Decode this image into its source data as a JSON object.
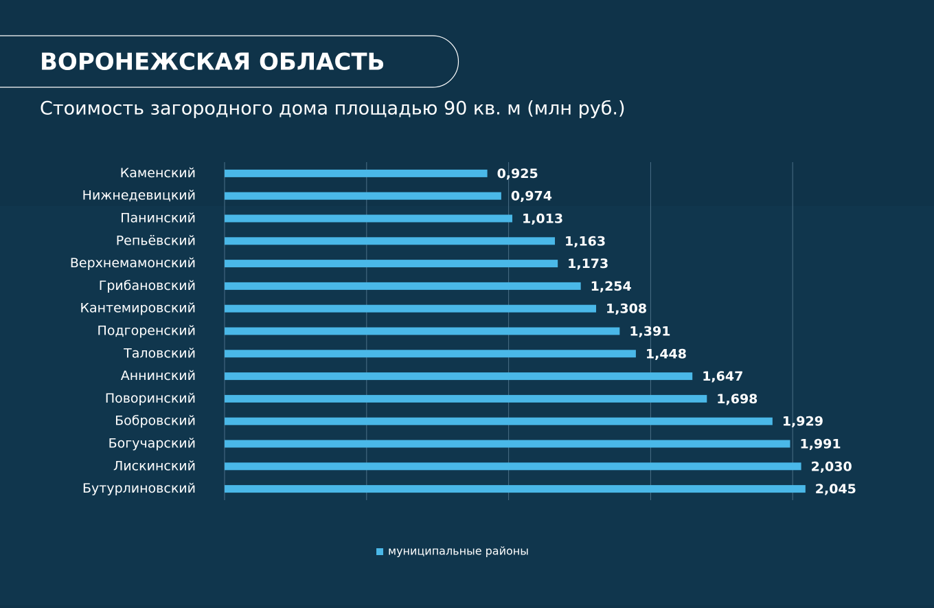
{
  "chart_data": {
    "type": "bar",
    "orientation": "horizontal",
    "title": "ВОРОНЕЖСКАЯ ОБЛАСТЬ",
    "subtitle": "Стоимость загородного дома площадью 90 кв. м (млн руб.)",
    "categories": [
      "Каменский",
      "Нижнедевицкий",
      "Панинский",
      "Репьёвский",
      "Верхнемамонский",
      "Грибановский",
      "Кантемировский",
      "Подгоренский",
      "Таловский",
      "Аннинский",
      "Поворинский",
      "Бобровский",
      "Богучарский",
      "Лискинский",
      "Бутурлиновский"
    ],
    "series": [
      {
        "name": "муниципальные районы",
        "color": "#4ab8e8",
        "values": [
          0.925,
          0.974,
          1.013,
          1.163,
          1.173,
          1.254,
          1.308,
          1.391,
          1.448,
          1.647,
          1.698,
          1.929,
          1.991,
          2.03,
          2.045
        ],
        "value_labels": [
          "0,925",
          "0,974",
          "1,013",
          "1,163",
          "1,173",
          "1,254",
          "1,308",
          "1,391",
          "1,448",
          "1,647",
          "1,698",
          "1,929",
          "1,991",
          "2,030",
          "2,045"
        ]
      }
    ],
    "xlim": [
      0,
      2.5
    ],
    "xticks": [
      0,
      0.5,
      1,
      1.5,
      2
    ],
    "grid": true,
    "legend": "bottom"
  }
}
